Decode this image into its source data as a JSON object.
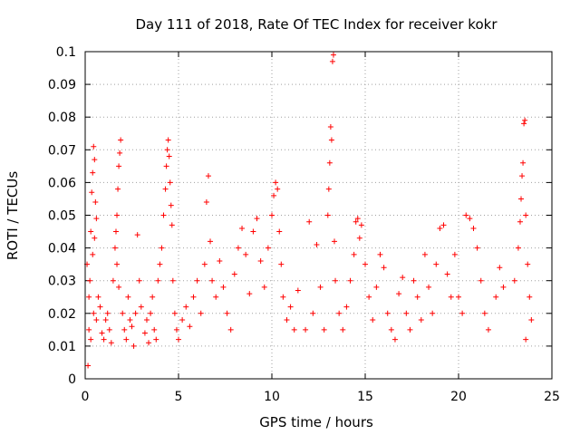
{
  "chart_data": {
    "type": "scatter",
    "title": "Day 111 of 2018, Rate Of TEC Index for receiver kokr",
    "xlabel": "GPS time / hours",
    "ylabel": "ROTI / TECUs",
    "xlim": [
      0,
      25
    ],
    "ylim": [
      0,
      0.1
    ],
    "x_ticks": [
      0,
      5,
      10,
      15,
      20,
      25
    ],
    "x_tick_labels": [
      "0",
      "5",
      "10",
      "15",
      "20",
      "25"
    ],
    "y_ticks": [
      0,
      0.01,
      0.02,
      0.03,
      0.04,
      0.05,
      0.06,
      0.07,
      0.08,
      0.09,
      0.1
    ],
    "y_tick_labels": [
      "0",
      "0.01",
      "0.02",
      "0.03",
      "0.04",
      "0.05",
      "0.06",
      "0.07",
      "0.08",
      "0.09",
      "0.1"
    ],
    "grid": true,
    "marker": "+",
    "color": "#ff0000",
    "series": [
      {
        "name": "ROTI",
        "points": [
          [
            0.1,
            0.035
          ],
          [
            0.15,
            0.004
          ],
          [
            0.2,
            0.025
          ],
          [
            0.3,
            0.045
          ],
          [
            0.35,
            0.057
          ],
          [
            0.4,
            0.063
          ],
          [
            0.45,
            0.071
          ],
          [
            0.5,
            0.067
          ],
          [
            0.55,
            0.054
          ],
          [
            0.6,
            0.049
          ],
          [
            0.25,
            0.03
          ],
          [
            0.4,
            0.038
          ],
          [
            0.5,
            0.043
          ],
          [
            0.2,
            0.015
          ],
          [
            0.3,
            0.012
          ],
          [
            0.45,
            0.02
          ],
          [
            0.6,
            0.018
          ],
          [
            0.7,
            0.025
          ],
          [
            0.8,
            0.022
          ],
          [
            0.9,
            0.014
          ],
          [
            1.0,
            0.012
          ],
          [
            1.1,
            0.018
          ],
          [
            1.2,
            0.02
          ],
          [
            1.3,
            0.015
          ],
          [
            1.4,
            0.011
          ],
          [
            1.5,
            0.03
          ],
          [
            1.6,
            0.04
          ],
          [
            1.65,
            0.045
          ],
          [
            1.7,
            0.05
          ],
          [
            1.75,
            0.058
          ],
          [
            1.8,
            0.065
          ],
          [
            1.85,
            0.069
          ],
          [
            1.9,
            0.073
          ],
          [
            1.7,
            0.035
          ],
          [
            1.8,
            0.028
          ],
          [
            2.0,
            0.02
          ],
          [
            2.1,
            0.015
          ],
          [
            2.2,
            0.012
          ],
          [
            2.3,
            0.025
          ],
          [
            2.4,
            0.018
          ],
          [
            2.5,
            0.016
          ],
          [
            2.6,
            0.01
          ],
          [
            2.7,
            0.02
          ],
          [
            2.8,
            0.044
          ],
          [
            2.9,
            0.03
          ],
          [
            3.0,
            0.022
          ],
          [
            3.2,
            0.014
          ],
          [
            3.3,
            0.018
          ],
          [
            3.4,
            0.011
          ],
          [
            3.5,
            0.02
          ],
          [
            3.6,
            0.025
          ],
          [
            3.7,
            0.015
          ],
          [
            3.8,
            0.012
          ],
          [
            3.9,
            0.03
          ],
          [
            4.0,
            0.035
          ],
          [
            4.1,
            0.04
          ],
          [
            4.2,
            0.05
          ],
          [
            4.3,
            0.058
          ],
          [
            4.35,
            0.065
          ],
          [
            4.4,
            0.07
          ],
          [
            4.45,
            0.073
          ],
          [
            4.5,
            0.068
          ],
          [
            4.55,
            0.06
          ],
          [
            4.6,
            0.053
          ],
          [
            4.65,
            0.047
          ],
          [
            4.7,
            0.03
          ],
          [
            4.8,
            0.02
          ],
          [
            4.9,
            0.015
          ],
          [
            5.0,
            0.012
          ],
          [
            5.2,
            0.018
          ],
          [
            5.4,
            0.022
          ],
          [
            5.6,
            0.016
          ],
          [
            5.8,
            0.025
          ],
          [
            6.0,
            0.03
          ],
          [
            6.2,
            0.02
          ],
          [
            6.4,
            0.035
          ],
          [
            6.5,
            0.054
          ],
          [
            6.6,
            0.062
          ],
          [
            6.7,
            0.042
          ],
          [
            6.8,
            0.03
          ],
          [
            7.0,
            0.025
          ],
          [
            7.2,
            0.036
          ],
          [
            7.4,
            0.028
          ],
          [
            7.6,
            0.02
          ],
          [
            7.8,
            0.015
          ],
          [
            8.0,
            0.032
          ],
          [
            8.2,
            0.04
          ],
          [
            8.4,
            0.046
          ],
          [
            8.6,
            0.038
          ],
          [
            8.8,
            0.026
          ],
          [
            9.0,
            0.045
          ],
          [
            9.2,
            0.049
          ],
          [
            9.4,
            0.036
          ],
          [
            9.6,
            0.028
          ],
          [
            9.8,
            0.04
          ],
          [
            10.0,
            0.05
          ],
          [
            10.1,
            0.056
          ],
          [
            10.2,
            0.06
          ],
          [
            10.3,
            0.058
          ],
          [
            10.4,
            0.045
          ],
          [
            10.5,
            0.035
          ],
          [
            10.6,
            0.025
          ],
          [
            10.8,
            0.018
          ],
          [
            11.0,
            0.022
          ],
          [
            11.2,
            0.015
          ],
          [
            11.4,
            0.027
          ],
          [
            11.8,
            0.015
          ],
          [
            12.0,
            0.048
          ],
          [
            12.2,
            0.02
          ],
          [
            12.4,
            0.041
          ],
          [
            12.6,
            0.028
          ],
          [
            12.8,
            0.015
          ],
          [
            13.0,
            0.05
          ],
          [
            13.05,
            0.058
          ],
          [
            13.1,
            0.066
          ],
          [
            13.15,
            0.077
          ],
          [
            13.2,
            0.073
          ],
          [
            13.25,
            0.097
          ],
          [
            13.3,
            0.099
          ],
          [
            13.35,
            0.042
          ],
          [
            13.4,
            0.03
          ],
          [
            13.6,
            0.02
          ],
          [
            13.8,
            0.015
          ],
          [
            14.0,
            0.022
          ],
          [
            14.2,
            0.03
          ],
          [
            14.4,
            0.038
          ],
          [
            14.5,
            0.048
          ],
          [
            14.6,
            0.049
          ],
          [
            14.7,
            0.043
          ],
          [
            14.8,
            0.047
          ],
          [
            15.0,
            0.035
          ],
          [
            15.2,
            0.025
          ],
          [
            15.4,
            0.018
          ],
          [
            15.6,
            0.028
          ],
          [
            15.8,
            0.038
          ],
          [
            16.0,
            0.034
          ],
          [
            16.2,
            0.02
          ],
          [
            16.4,
            0.015
          ],
          [
            16.6,
            0.012
          ],
          [
            16.8,
            0.026
          ],
          [
            17.0,
            0.031
          ],
          [
            17.2,
            0.02
          ],
          [
            17.4,
            0.015
          ],
          [
            17.6,
            0.03
          ],
          [
            17.8,
            0.025
          ],
          [
            18.0,
            0.018
          ],
          [
            18.2,
            0.038
          ],
          [
            18.4,
            0.028
          ],
          [
            18.6,
            0.02
          ],
          [
            18.8,
            0.035
          ],
          [
            19.0,
            0.046
          ],
          [
            19.2,
            0.047
          ],
          [
            19.4,
            0.032
          ],
          [
            19.6,
            0.025
          ],
          [
            19.8,
            0.038
          ],
          [
            20.0,
            0.025
          ],
          [
            20.2,
            0.02
          ],
          [
            20.4,
            0.05
          ],
          [
            20.6,
            0.049
          ],
          [
            20.8,
            0.046
          ],
          [
            21.0,
            0.04
          ],
          [
            21.2,
            0.03
          ],
          [
            21.4,
            0.02
          ],
          [
            21.6,
            0.015
          ],
          [
            22.0,
            0.025
          ],
          [
            22.2,
            0.034
          ],
          [
            22.4,
            0.028
          ],
          [
            23.0,
            0.03
          ],
          [
            23.2,
            0.04
          ],
          [
            23.3,
            0.048
          ],
          [
            23.35,
            0.055
          ],
          [
            23.4,
            0.062
          ],
          [
            23.45,
            0.066
          ],
          [
            23.5,
            0.078
          ],
          [
            23.55,
            0.079
          ],
          [
            23.6,
            0.05
          ],
          [
            23.7,
            0.035
          ],
          [
            23.8,
            0.025
          ],
          [
            23.9,
            0.018
          ],
          [
            23.6,
            0.012
          ]
        ]
      }
    ]
  }
}
